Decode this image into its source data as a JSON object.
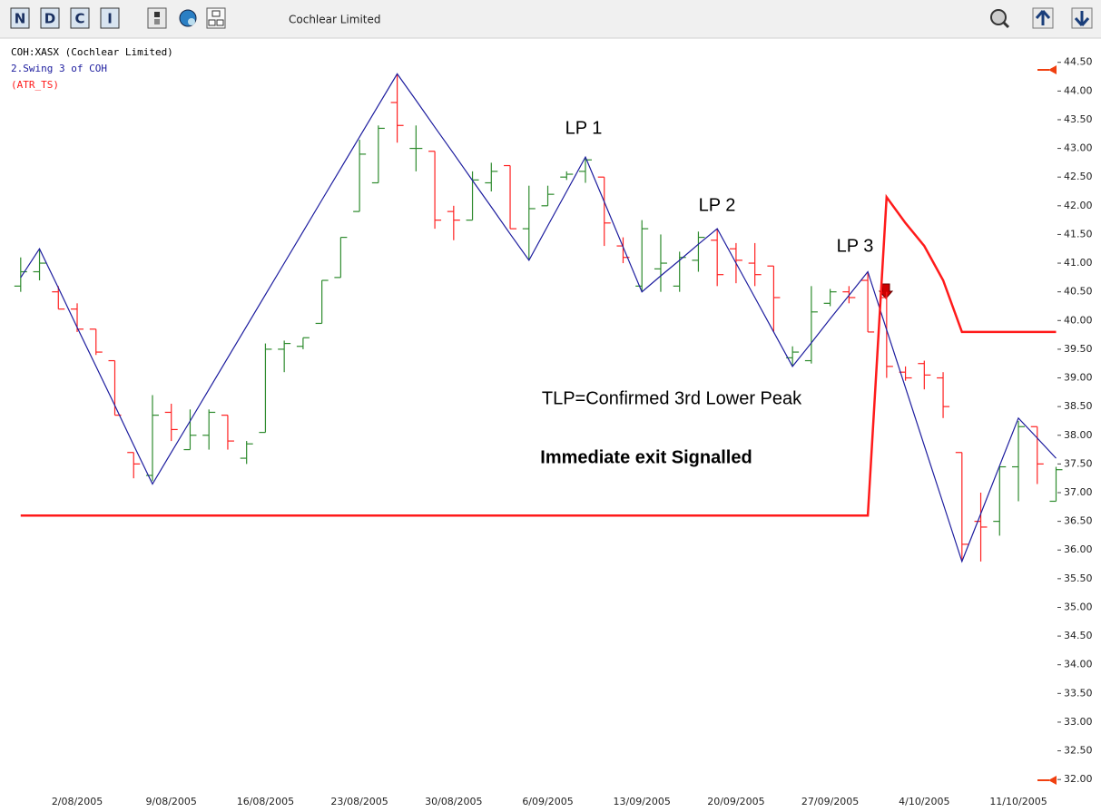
{
  "toolbar": {
    "buttons": [
      "N",
      "D",
      "C",
      "I"
    ],
    "title": "Cochlear Limited"
  },
  "chart_data": {
    "type": "ohlc",
    "categories": [
      null,
      null,
      null,
      "2/08/2005",
      null,
      null,
      null,
      null,
      "9/08/2005",
      null,
      null,
      null,
      null,
      "16/08/2005",
      null,
      null,
      null,
      null,
      "23/08/2005",
      null,
      null,
      null,
      null,
      "30/08/2005",
      null,
      null,
      null,
      null,
      "6/09/2005",
      null,
      null,
      null,
      null,
      "13/09/2005",
      null,
      null,
      null,
      null,
      "20/09/2005",
      null,
      null,
      null,
      null,
      "27/09/2005",
      null,
      null,
      null,
      null,
      "4/10/2005",
      null,
      null,
      null,
      null,
      "11/10/2005",
      null,
      null
    ],
    "series": [
      {
        "name": "COH:XASX (Cochlear Limited)",
        "color_up": "#2e8b2e",
        "color_down": "#ff2020",
        "open": [
          40.6,
          40.85,
          40.5,
          40.2,
          39.85,
          39.3,
          37.7,
          37.3,
          38.4,
          37.75,
          38.0,
          38.35,
          37.6,
          38.05,
          39.5,
          39.55,
          39.95,
          40.75,
          41.9,
          42.4,
          43.8,
          43.0,
          42.95,
          41.9,
          41.75,
          42.4,
          42.7,
          41.6,
          42.0,
          42.5,
          42.6,
          42.5,
          41.3,
          40.6,
          40.9,
          40.6,
          41.05,
          41.4,
          41.25,
          41.0,
          40.95,
          39.35,
          39.3,
          40.3,
          40.5,
          40.7,
          40.4,
          39.1,
          39.25,
          39.0,
          37.7,
          36.5,
          36.5,
          37.45,
          38.15,
          36.85
        ],
        "high": [
          41.1,
          41.25,
          40.6,
          40.3,
          39.85,
          39.3,
          37.7,
          38.7,
          38.55,
          38.45,
          38.45,
          38.35,
          37.9,
          39.6,
          39.65,
          39.7,
          40.7,
          41.45,
          43.15,
          43.4,
          44.3,
          43.4,
          42.95,
          42.0,
          42.6,
          42.75,
          42.7,
          42.35,
          42.35,
          42.6,
          42.85,
          42.5,
          41.45,
          41.75,
          41.5,
          41.2,
          41.55,
          41.6,
          41.35,
          41.35,
          40.95,
          39.55,
          40.6,
          40.55,
          40.6,
          40.85,
          40.5,
          39.2,
          39.3,
          39.1,
          37.7,
          37.0,
          37.45,
          38.25,
          38.15,
          37.45
        ],
        "low": [
          40.5,
          40.7,
          40.2,
          39.8,
          39.4,
          38.35,
          37.25,
          37.2,
          37.9,
          37.75,
          37.75,
          37.75,
          37.5,
          38.05,
          39.1,
          39.5,
          39.95,
          40.75,
          41.9,
          42.4,
          43.1,
          42.6,
          41.6,
          41.4,
          41.75,
          42.25,
          41.6,
          41.05,
          42.0,
          42.45,
          42.4,
          41.3,
          41.0,
          40.5,
          40.5,
          40.5,
          40.85,
          40.6,
          40.65,
          40.6,
          39.8,
          39.2,
          39.25,
          40.25,
          40.3,
          39.8,
          39.0,
          38.95,
          38.8,
          38.3,
          35.8,
          35.8,
          36.25,
          36.85,
          37.15,
          36.85
        ],
        "close": [
          40.85,
          41.0,
          40.2,
          39.85,
          39.45,
          38.35,
          37.5,
          38.35,
          38.1,
          38.0,
          38.4,
          37.9,
          37.85,
          39.5,
          39.6,
          39.7,
          40.7,
          41.45,
          42.9,
          43.35,
          43.4,
          43.0,
          41.75,
          41.75,
          42.45,
          42.6,
          41.6,
          41.95,
          42.2,
          42.55,
          42.8,
          41.7,
          41.1,
          41.6,
          41.0,
          41.1,
          41.45,
          40.8,
          41.05,
          40.8,
          40.4,
          39.45,
          40.15,
          40.5,
          40.4,
          39.8,
          39.2,
          39.0,
          39.05,
          38.5,
          36.1,
          36.4,
          37.45,
          38.15,
          37.5,
          37.4
        ]
      },
      {
        "name": "2.Swing 3  of COH",
        "color": "#1c1c9e",
        "values": [
          40.75,
          41.25,
          40.57,
          39.88,
          39.2,
          38.52,
          37.83,
          37.15,
          37.7,
          38.25,
          38.8,
          39.35,
          39.9,
          40.45,
          41.0,
          41.55,
          42.1,
          42.65,
          43.2,
          43.75,
          44.3,
          43.84,
          43.37,
          42.91,
          42.44,
          41.98,
          41.51,
          41.05,
          41.65,
          42.25,
          42.85,
          42.07,
          41.28,
          40.5,
          40.78,
          41.05,
          41.33,
          41.6,
          41.0,
          40.4,
          39.8,
          39.2,
          39.61,
          40.03,
          40.44,
          40.85,
          39.84,
          38.83,
          37.82,
          36.81,
          35.8,
          36.63,
          37.47,
          38.3,
          37.95,
          37.6
        ]
      },
      {
        "name": "(ATR_TS)",
        "color": "#ff1a1a",
        "values": [
          36.6,
          36.6,
          36.6,
          36.6,
          36.6,
          36.6,
          36.6,
          36.6,
          36.6,
          36.6,
          36.6,
          36.6,
          36.6,
          36.6,
          36.6,
          36.6,
          36.6,
          36.6,
          36.6,
          36.6,
          36.6,
          36.6,
          36.6,
          36.6,
          36.6,
          36.6,
          36.6,
          36.6,
          36.6,
          36.6,
          36.6,
          36.6,
          36.6,
          36.6,
          36.6,
          36.6,
          36.6,
          36.6,
          36.6,
          36.6,
          36.6,
          36.6,
          36.6,
          36.6,
          36.6,
          36.6,
          42.15,
          41.7,
          41.3,
          40.7,
          39.8,
          39.8,
          39.8,
          39.8,
          39.8,
          39.8
        ]
      }
    ],
    "ylim": [
      31.75,
      44.875
    ],
    "yticks": [
      {
        "value": 32,
        "label": "32.00"
      },
      {
        "value": 32.5,
        "label": "32.50"
      },
      {
        "value": 33,
        "label": "33.00"
      },
      {
        "value": 33.5,
        "label": "33.50"
      },
      {
        "value": 34,
        "label": "34.00"
      },
      {
        "value": 34.5,
        "label": "34.50"
      },
      {
        "value": 35,
        "label": "35.00"
      },
      {
        "value": 35.5,
        "label": "35.50"
      },
      {
        "value": 36,
        "label": "36.00"
      },
      {
        "value": 36.5,
        "label": "36.50"
      },
      {
        "value": 37,
        "label": "37.00"
      },
      {
        "value": 37.5,
        "label": "37.50"
      },
      {
        "value": 38,
        "label": "38.00"
      },
      {
        "value": 38.5,
        "label": "38.50"
      },
      {
        "value": 39,
        "label": "39.00"
      },
      {
        "value": 39.5,
        "label": "39.50"
      },
      {
        "value": 40,
        "label": "40.00"
      },
      {
        "value": 40.5,
        "label": "40.50"
      },
      {
        "value": 41,
        "label": "41.00"
      },
      {
        "value": 41.5,
        "label": "41.50"
      },
      {
        "value": 42,
        "label": "42.00"
      },
      {
        "value": 42.5,
        "label": "42.50"
      },
      {
        "value": 43,
        "label": "43.00"
      },
      {
        "value": 43.5,
        "label": "43.50"
      },
      {
        "value": 44,
        "label": "44.00"
      },
      {
        "value": 44.5,
        "label": "44.50"
      }
    ],
    "annotations": [
      "LP 1",
      "LP 2",
      "LP 3",
      "TLP=Confirmed 3rd Lower Peak",
      "Immediate exit Signalled"
    ],
    "grid": false
  }
}
